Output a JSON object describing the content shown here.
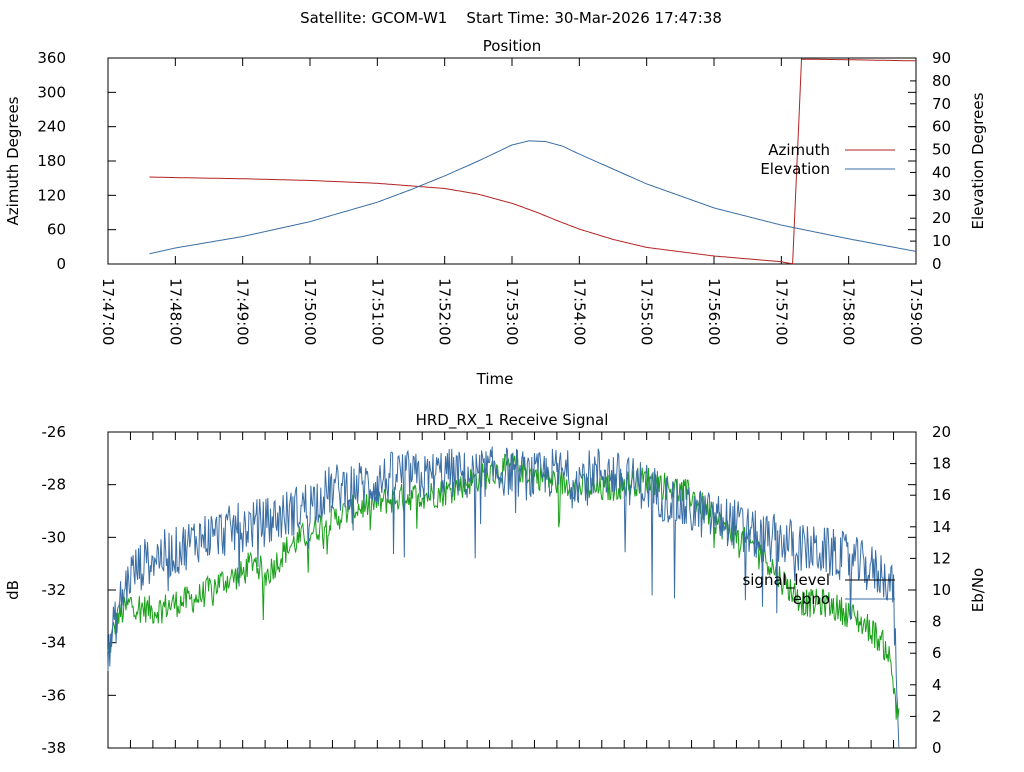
{
  "header": {
    "title": "Satellite: GCOM-W1    Start Time: 30-Mar-2026 17:47:38"
  },
  "chart_data": [
    {
      "type": "line",
      "title": "Position",
      "xlabel": "Time",
      "ylabel": "Azimuth Degrees",
      "y2label": "Elevation Degrees",
      "xlim": [
        0,
        720
      ],
      "ylim": [
        0,
        360
      ],
      "y2lim": [
        0,
        90
      ],
      "x_ticks": [
        0,
        60,
        120,
        180,
        240,
        300,
        360,
        420,
        480,
        540,
        600,
        660,
        720
      ],
      "x_tick_labels": [
        "17:47:00",
        "17:48:00",
        "17:49:00",
        "17:50:00",
        "17:51:00",
        "17:52:00",
        "17:53:00",
        "17:54:00",
        "17:55:00",
        "17:56:00",
        "17:57:00",
        "17:58:00",
        "17:59:00"
      ],
      "y_ticks": [
        0,
        60,
        120,
        180,
        240,
        300,
        360
      ],
      "y_tick_labels": [
        "0",
        "60",
        "120",
        "180",
        "240",
        "300",
        "360"
      ],
      "y2_ticks": [
        0,
        10,
        20,
        30,
        40,
        50,
        60,
        70,
        80,
        90
      ],
      "y2_tick_labels": [
        "0",
        "10",
        "20",
        "30",
        "40",
        "50",
        "60",
        "70",
        "80",
        "90"
      ],
      "grid": false,
      "legend_position": "right-middle",
      "series": [
        {
          "name": "Azimuth",
          "axis": "left",
          "color": "#b22222",
          "x": [
            37,
            60,
            120,
            180,
            240,
            300,
            330,
            360,
            380,
            400,
            420,
            450,
            480,
            540,
            600,
            605,
            610,
            612,
            618,
            660,
            720
          ],
          "y": [
            152,
            151,
            149,
            146,
            141,
            132,
            122,
            106,
            92,
            76,
            61,
            43,
            29,
            14,
            4,
            2,
            0.5,
            88,
            358,
            357,
            355
          ]
        },
        {
          "name": "Elevation",
          "axis": "right",
          "color": "#3a6ea5",
          "x": [
            37,
            60,
            120,
            180,
            240,
            270,
            300,
            330,
            360,
            375,
            390,
            405,
            420,
            450,
            480,
            540,
            600,
            660,
            720
          ],
          "y": [
            4.5,
            7,
            12,
            18.5,
            27,
            32.5,
            38.5,
            45,
            52,
            53.8,
            53.5,
            51.5,
            48,
            41.5,
            35,
            24.5,
            17,
            11,
            5.5
          ]
        }
      ]
    },
    {
      "type": "line",
      "title": "HRD_RX_1 Receive Signal",
      "xlabel": "",
      "ylabel": "dB",
      "y2label": "Eb/No",
      "xlim": [
        0,
        720
      ],
      "ylim": [
        -38,
        -26
      ],
      "y2lim": [
        0,
        20
      ],
      "x_ticks": [
        0,
        20,
        40,
        60,
        80,
        100,
        120,
        140,
        160,
        180,
        200,
        220,
        240,
        260,
        280,
        300,
        320,
        340,
        360,
        380,
        400,
        420,
        440,
        460,
        480,
        500,
        520,
        540,
        560,
        580,
        600,
        620,
        640,
        660,
        680,
        700,
        720
      ],
      "y_ticks": [
        -38,
        -36,
        -34,
        -32,
        -30,
        -28,
        -26
      ],
      "y_tick_labels": [
        "-38",
        "-36",
        "-34",
        "-32",
        "-30",
        "-28",
        "-26"
      ],
      "y2_ticks": [
        0,
        2,
        4,
        6,
        8,
        10,
        12,
        14,
        16,
        18,
        20
      ],
      "y2_tick_labels": [
        "0",
        "2",
        "4",
        "6",
        "8",
        "10",
        "12",
        "14",
        "16",
        "18",
        "20"
      ],
      "grid": false,
      "legend_position": "right-middle",
      "series": [
        {
          "name": "signal_level",
          "axis": "left",
          "color": "#1aa01a",
          "x": [
            0,
            5,
            10,
            20,
            40,
            60,
            80,
            100,
            120,
            130,
            140,
            160,
            180,
            200,
            220,
            240,
            260,
            280,
            300,
            320,
            340,
            360,
            380,
            400,
            420,
            440,
            460,
            480,
            500,
            520,
            540,
            560,
            580,
            600,
            620,
            640,
            660,
            680,
            695,
            700,
            705
          ],
          "y": [
            -34.5,
            -33.5,
            -33,
            -32.5,
            -32.8,
            -32.5,
            -32.3,
            -31.7,
            -31.4,
            -30.8,
            -31.5,
            -30.4,
            -29.8,
            -29.3,
            -28.9,
            -28.7,
            -28.5,
            -28.4,
            -28.3,
            -27.9,
            -27.6,
            -27.3,
            -27.6,
            -27.9,
            -28.1,
            -28.2,
            -28.0,
            -27.8,
            -28.1,
            -28.4,
            -29.3,
            -30.0,
            -30.4,
            -31.6,
            -32.5,
            -32.5,
            -32.9,
            -33.5,
            -34.3,
            -35.6,
            -36.5
          ]
        },
        {
          "name": "ebno",
          "axis": "right",
          "color": "#3a6ea5",
          "x": [
            0,
            5,
            10,
            20,
            40,
            60,
            80,
            100,
            120,
            140,
            160,
            180,
            200,
            220,
            240,
            260,
            280,
            300,
            320,
            340,
            360,
            380,
            400,
            420,
            440,
            460,
            480,
            500,
            520,
            540,
            560,
            580,
            600,
            620,
            640,
            660,
            680,
            695,
            700,
            703,
            705
          ],
          "y": [
            5.5,
            7.5,
            9,
            11,
            12.1,
            12.4,
            13.3,
            13.6,
            14.0,
            14.3,
            14.8,
            15.5,
            16.4,
            16.6,
            16.8,
            17.4,
            17.0,
            17.5,
            17.2,
            17.5,
            17.5,
            17.1,
            17.5,
            17.1,
            17.6,
            17.0,
            16.6,
            15.7,
            15.0,
            14.6,
            14.2,
            13.3,
            13.2,
            12.6,
            12.4,
            12.0,
            11.3,
            10.8,
            10.0,
            2.5,
            0.5
          ]
        }
      ]
    }
  ]
}
